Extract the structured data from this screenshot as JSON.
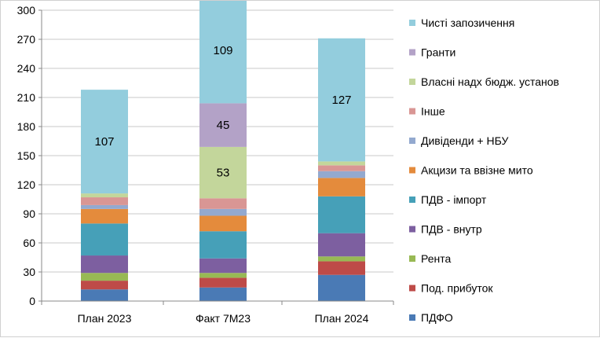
{
  "chart_data": {
    "type": "bar",
    "stacked": true,
    "categories": [
      "План 2023",
      "Факт 7М23",
      "План 2024"
    ],
    "ylim": [
      0,
      300
    ],
    "yticks": [
      0,
      30,
      60,
      90,
      120,
      150,
      180,
      210,
      240,
      270,
      300
    ],
    "grid": true,
    "legend_position": "right",
    "series": [
      {
        "name": "ПДФО",
        "color": "#4a7ab5",
        "values": [
          12,
          14,
          27
        ]
      },
      {
        "name": "Под. прибуток",
        "color": "#be4b48",
        "values": [
          9,
          10,
          14
        ]
      },
      {
        "name": "Рента",
        "color": "#98b954",
        "values": [
          8,
          5,
          5
        ]
      },
      {
        "name": "ПДВ - внутр",
        "color": "#7d5fa0",
        "values": [
          18,
          15,
          24
        ]
      },
      {
        "name": "ПДВ - імпорт",
        "color": "#46a0b8",
        "values": [
          33,
          28,
          38
        ]
      },
      {
        "name": "Акцизи та ввізне мито",
        "color": "#e48b3c",
        "values": [
          15,
          16,
          19
        ]
      },
      {
        "name": "Дивіденди + НБУ",
        "color": "#93a9cf",
        "values": [
          4,
          7,
          7
        ]
      },
      {
        "name": "Інше",
        "color": "#d99694",
        "values": [
          8,
          11,
          6
        ]
      },
      {
        "name": "Власні надх бюдж. установ",
        "color": "#c3d69b",
        "values": [
          4,
          53,
          4
        ]
      },
      {
        "name": "Гранти",
        "color": "#b3a2c7",
        "values": [
          0,
          45,
          0
        ]
      },
      {
        "name": "Чисті запозичення",
        "color": "#93cddd",
        "values": [
          107,
          109,
          127
        ]
      }
    ],
    "data_labels": [
      {
        "series": "Чисті запозичення",
        "category": "План 2023",
        "text": "107"
      },
      {
        "series": "Чисті запозичення",
        "category": "Факт 7М23",
        "text": "109"
      },
      {
        "series": "Чисті запозичення",
        "category": "План 2024",
        "text": "127"
      },
      {
        "series": "Гранти",
        "category": "Факт 7М23",
        "text": "45"
      },
      {
        "series": "Власні надх бюдж. установ",
        "category": "Факт 7М23",
        "text": "53"
      }
    ],
    "legend_order": [
      "Чисті запозичення",
      "Гранти",
      "Власні надх бюдж. установ",
      "Інше",
      "Дивіденди + НБУ",
      "Акцизи та ввізне мито",
      "ПДВ - імпорт",
      "ПДВ - внутр",
      "Рента",
      "Под. прибуток",
      "ПДФО"
    ]
  }
}
